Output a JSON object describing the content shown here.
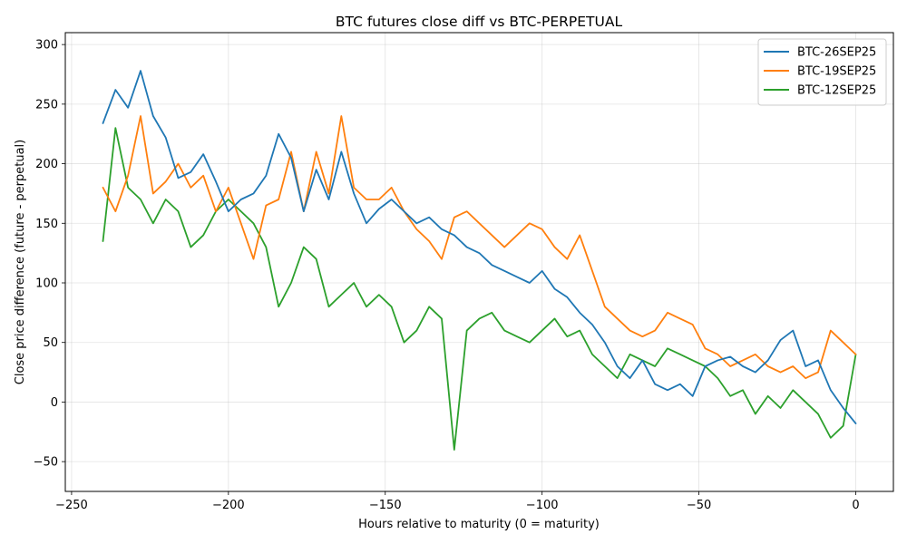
{
  "chart_data": {
    "type": "line",
    "title": "BTC futures close diff vs BTC-PERPETUAL",
    "xlabel": "Hours relative to maturity (0 = maturity)",
    "ylabel": "Close price difference (future - perpetual)",
    "xlim": [
      -252,
      12
    ],
    "ylim": [
      -75,
      310
    ],
    "xticks": [
      -250,
      -200,
      -150,
      -100,
      -50,
      0
    ],
    "xtick_labels": [
      "−250",
      "−200",
      "−150",
      "−100",
      "−50",
      "0"
    ],
    "yticks": [
      -50,
      0,
      50,
      100,
      150,
      200,
      250,
      300
    ],
    "ytick_labels": [
      "−50",
      "0",
      "50",
      "100",
      "150",
      "200",
      "250",
      "300"
    ],
    "grid": true,
    "legend_position": "top-right",
    "series": [
      {
        "name": "BTC-26SEP25",
        "color": "#1f77b4",
        "x": [
          -240,
          -236,
          -232,
          -228,
          -224,
          -220,
          -216,
          -212,
          -208,
          -204,
          -200,
          -196,
          -192,
          -188,
          -184,
          -180,
          -176,
          -172,
          -168,
          -164,
          -160,
          -156,
          -152,
          -148,
          -144,
          -140,
          -136,
          -132,
          -128,
          -124,
          -120,
          -116,
          -112,
          -108,
          -104,
          -100,
          -96,
          -92,
          -88,
          -84,
          -80,
          -76,
          -72,
          -68,
          -64,
          -60,
          -56,
          -52,
          -48,
          -44,
          -40,
          -36,
          -32,
          -28,
          -24,
          -20,
          -16,
          -12,
          -8,
          -4,
          0
        ],
        "values": [
          234,
          262,
          247,
          278,
          240,
          222,
          188,
          193,
          208,
          185,
          160,
          170,
          175,
          190,
          225,
          205,
          160,
          195,
          170,
          210,
          175,
          150,
          162,
          170,
          160,
          150,
          155,
          145,
          140,
          130,
          125,
          115,
          110,
          105,
          100,
          110,
          95,
          88,
          75,
          65,
          50,
          30,
          20,
          35,
          15,
          10,
          15,
          5,
          30,
          35,
          38,
          30,
          25,
          35,
          52,
          60,
          30,
          35,
          10,
          -5,
          -18
        ]
      },
      {
        "name": "BTC-19SEP25",
        "color": "#ff7f0e",
        "x": [
          -240,
          -236,
          -232,
          -228,
          -224,
          -220,
          -216,
          -212,
          -208,
          -204,
          -200,
          -196,
          -192,
          -188,
          -184,
          -180,
          -176,
          -172,
          -168,
          -164,
          -160,
          -156,
          -152,
          -148,
          -144,
          -140,
          -136,
          -132,
          -128,
          -124,
          -120,
          -116,
          -112,
          -108,
          -104,
          -100,
          -96,
          -92,
          -88,
          -84,
          -80,
          -76,
          -72,
          -68,
          -64,
          -60,
          -56,
          -52,
          -48,
          -44,
          -40,
          -36,
          -32,
          -28,
          -24,
          -20,
          -16,
          -12,
          -8,
          -4,
          0
        ],
        "values": [
          180,
          160,
          190,
          240,
          175,
          185,
          200,
          180,
          190,
          160,
          180,
          150,
          120,
          165,
          170,
          210,
          160,
          210,
          175,
          240,
          180,
          170,
          170,
          180,
          160,
          145,
          135,
          120,
          155,
          160,
          150,
          140,
          130,
          140,
          150,
          145,
          130,
          120,
          140,
          110,
          80,
          70,
          60,
          55,
          60,
          75,
          70,
          65,
          45,
          40,
          30,
          35,
          40,
          30,
          25,
          30,
          20,
          25,
          60,
          50,
          40
        ]
      },
      {
        "name": "BTC-12SEP25",
        "color": "#2ca02c",
        "x": [
          -240,
          -236,
          -232,
          -228,
          -224,
          -220,
          -216,
          -212,
          -208,
          -204,
          -200,
          -196,
          -192,
          -188,
          -184,
          -180,
          -176,
          -172,
          -168,
          -164,
          -160,
          -156,
          -152,
          -148,
          -144,
          -140,
          -136,
          -132,
          -128,
          -124,
          -120,
          -116,
          -112,
          -108,
          -104,
          -100,
          -96,
          -92,
          -88,
          -84,
          -80,
          -76,
          -72,
          -68,
          -64,
          -60,
          -56,
          -52,
          -48,
          -44,
          -40,
          -36,
          -32,
          -28,
          -24,
          -20,
          -16,
          -12,
          -8,
          -4,
          0
        ],
        "values": [
          135,
          230,
          180,
          170,
          150,
          170,
          160,
          130,
          140,
          160,
          170,
          160,
          150,
          130,
          80,
          100,
          130,
          120,
          80,
          90,
          100,
          80,
          90,
          80,
          50,
          60,
          80,
          70,
          -40,
          60,
          70,
          75,
          60,
          55,
          50,
          60,
          70,
          55,
          60,
          40,
          30,
          20,
          40,
          35,
          30,
          45,
          40,
          35,
          30,
          20,
          5,
          10,
          -10,
          5,
          -5,
          10,
          0,
          -10,
          -30,
          -20,
          40
        ]
      }
    ]
  }
}
